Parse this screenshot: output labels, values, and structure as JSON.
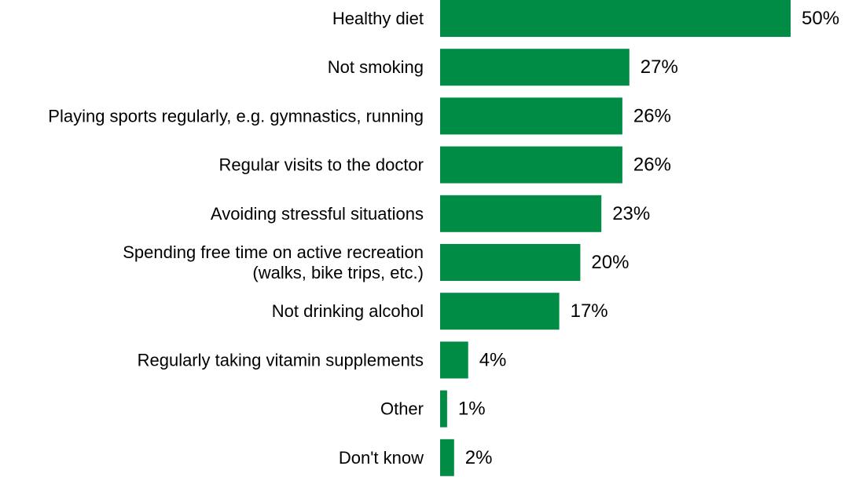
{
  "chart_data": {
    "type": "bar",
    "orientation": "horizontal",
    "title": "",
    "xlabel": "",
    "ylabel": "",
    "grid": false,
    "legend": "none",
    "bar_color": "#008C45",
    "xlim": [
      0,
      50
    ],
    "categories": [
      [
        "Healthy diet"
      ],
      [
        "Not smoking"
      ],
      [
        "Playing sports regularly, e.g. gymnastics, running"
      ],
      [
        "Regular visits to the doctor"
      ],
      [
        "Avoiding stressful situations"
      ],
      [
        "Spending free time on active recreation",
        "(walks, bike trips, etc.)"
      ],
      [
        "Not drinking alcohol"
      ],
      [
        "Regularly taking vitamin supplements"
      ],
      [
        "Other"
      ],
      [
        "Don't know"
      ]
    ],
    "values": [
      50,
      27,
      26,
      26,
      23,
      20,
      17,
      4,
      1,
      2
    ],
    "data_labels": [
      "50%",
      "27%",
      "26%",
      "26%",
      "23%",
      "20%",
      "17%",
      "4%",
      "1%",
      "2%"
    ]
  }
}
